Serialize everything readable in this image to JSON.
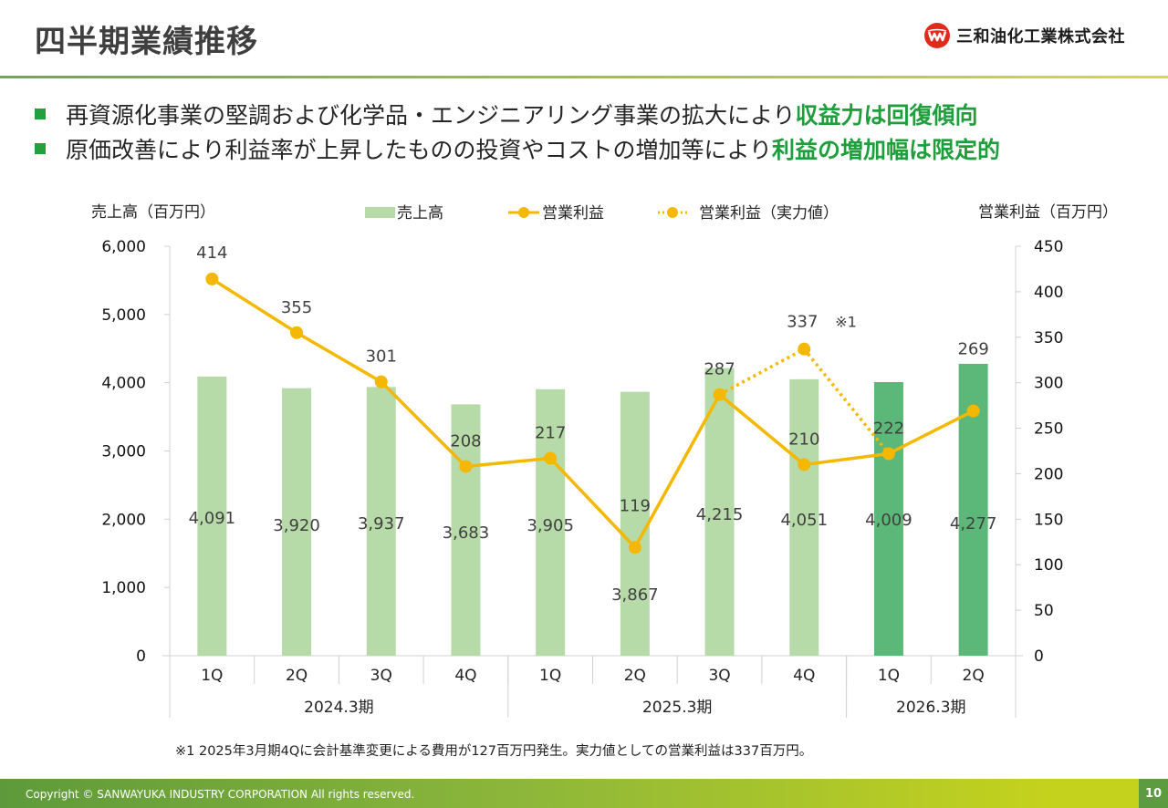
{
  "header": {
    "title": "四半期業績推移",
    "company": "三和油化工業株式会社",
    "logo_icon": "company-logo-icon"
  },
  "bullets": [
    {
      "text": "再資源化事業の堅調および化学品・エンジニアリング事業の拡大により",
      "highlight": "収益力は回復傾向"
    },
    {
      "text": "原価改善により利益率が上昇したものの投資やコストの増加等により",
      "highlight": "利益の増加幅は限定的"
    }
  ],
  "colors": {
    "bar_past": "#b7dba8",
    "bar_current": "#5bb878",
    "line": "#f5b800",
    "accent_green": "#1f9e3c"
  },
  "chart_data": {
    "type": "bar",
    "title": "",
    "ylabel_left": "売上高（百万円）",
    "ylabel_right": "営業利益（百万円）",
    "ylim_left": [
      0,
      6000
    ],
    "yticks_left": [
      "0",
      "1,000",
      "2,000",
      "3,000",
      "4,000",
      "5,000",
      "6,000"
    ],
    "ylim_right": [
      0,
      450
    ],
    "yticks_right": [
      "0",
      "50",
      "100",
      "150",
      "200",
      "250",
      "300",
      "350",
      "400",
      "450"
    ],
    "legend": {
      "placement": "top",
      "entries": [
        "売上高",
        "営業利益",
        "営業利益（実力値）"
      ]
    },
    "categories": [
      "1Q",
      "2Q",
      "3Q",
      "4Q",
      "1Q",
      "2Q",
      "3Q",
      "4Q",
      "1Q",
      "2Q"
    ],
    "groups": [
      {
        "label": "2024.3期",
        "span": 4
      },
      {
        "label": "2025.3期",
        "span": 4
      },
      {
        "label": "2026.3期",
        "span": 2
      }
    ],
    "series": [
      {
        "name": "売上高",
        "type": "bar",
        "axis": "left",
        "values": [
          4091,
          3920,
          3937,
          3683,
          3905,
          3867,
          4215,
          4051,
          4009,
          4277
        ],
        "labels": [
          "4,091",
          "3,920",
          "3,937",
          "3,683",
          "3,905",
          "3,867",
          "4,215",
          "4,051",
          "4,009",
          "4,277"
        ],
        "current_period_from_index": 8
      },
      {
        "name": "営業利益",
        "type": "line",
        "axis": "right",
        "values": [
          414,
          355,
          301,
          208,
          217,
          119,
          287,
          210,
          222,
          269
        ],
        "labels": [
          "414",
          "355",
          "301",
          "208",
          "217",
          "119",
          "287",
          "210",
          "222",
          "269"
        ]
      },
      {
        "name": "営業利益（実力値）",
        "type": "line-dotted",
        "axis": "right",
        "points": [
          {
            "index": 6,
            "value": 287
          },
          {
            "index": 7,
            "value": 337
          },
          {
            "index": 8,
            "value": 222
          }
        ],
        "label": "337",
        "annotation": "※1"
      }
    ]
  },
  "footnote": "※1  2025年3月期4Qに会計基準変更による費用が127百万円発生。実力値としての営業利益は337百万円。",
  "footer": {
    "copyright": "Copyright © SANWAYUKA INDUSTRY CORPORATION All rights reserved.",
    "page_number": "10"
  }
}
